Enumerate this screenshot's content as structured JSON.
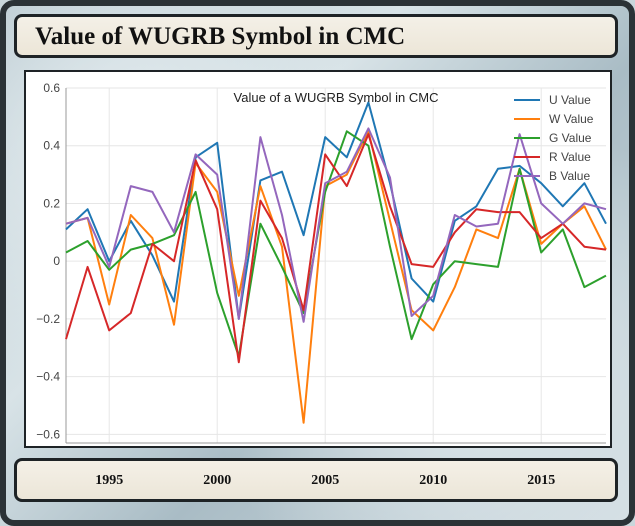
{
  "window": {
    "title": "Value of WUGRB Symbol in CMC"
  },
  "chart_data": {
    "type": "line",
    "title": "Value of a WUGRB Symbol in CMC",
    "xlabel": "",
    "ylabel": "",
    "x": [
      1993,
      1994,
      1995,
      1996,
      1997,
      1998,
      1999,
      2000,
      2001,
      2002,
      2003,
      2004,
      2005,
      2006,
      2007,
      2008,
      2009,
      2010,
      2011,
      2012,
      2013,
      2014,
      2015,
      2016,
      2017,
      2018
    ],
    "xlim": [
      1993,
      2018
    ],
    "ylim": [
      -0.63,
      0.6
    ],
    "y_ticks": [
      0.6,
      0.4,
      0.2,
      0,
      -0.2,
      -0.4,
      -0.6
    ],
    "y_tick_labels": [
      "0.6",
      "0.4",
      "0.2",
      "0",
      "−0.2",
      "−0.4",
      "−0.6"
    ],
    "x_ticks": [
      1995,
      2000,
      2005,
      2010,
      2015
    ],
    "x_tick_labels": [
      "1995",
      "2000",
      "2005",
      "2010",
      "2015"
    ],
    "grid": true,
    "legend_position": "top-right",
    "series": [
      {
        "name": "U Value",
        "color": "#1f77b4",
        "values": [
          0.11,
          0.18,
          0.0,
          0.14,
          0.02,
          -0.14,
          0.36,
          0.41,
          -0.2,
          0.28,
          0.31,
          0.09,
          0.43,
          0.36,
          0.55,
          0.27,
          -0.06,
          -0.14,
          0.14,
          0.19,
          0.32,
          0.33,
          0.27,
          0.19,
          0.27,
          0.13
        ]
      },
      {
        "name": "W Value",
        "color": "#ff7f0e",
        "values": [
          0.13,
          0.15,
          -0.15,
          0.16,
          0.08,
          -0.22,
          0.34,
          0.24,
          -0.12,
          0.26,
          0.05,
          -0.56,
          0.26,
          0.3,
          0.45,
          0.14,
          -0.17,
          -0.24,
          -0.09,
          0.11,
          0.08,
          0.32,
          0.06,
          0.13,
          0.19,
          0.04
        ]
      },
      {
        "name": "G Value",
        "color": "#2ca02c",
        "values": [
          0.03,
          0.07,
          -0.03,
          0.04,
          0.06,
          0.09,
          0.24,
          -0.11,
          -0.33,
          0.13,
          -0.02,
          -0.18,
          0.24,
          0.45,
          0.4,
          0.05,
          -0.27,
          -0.08,
          0.0,
          -0.01,
          -0.02,
          0.32,
          0.03,
          0.11,
          -0.09,
          -0.05
        ]
      },
      {
        "name": "R Value",
        "color": "#d62728",
        "values": [
          -0.27,
          -0.02,
          -0.24,
          -0.18,
          0.06,
          0.0,
          0.35,
          0.18,
          -0.35,
          0.21,
          0.08,
          -0.17,
          0.37,
          0.26,
          0.44,
          0.19,
          -0.01,
          -0.02,
          0.1,
          0.18,
          0.17,
          0.17,
          0.08,
          0.13,
          0.05,
          0.04
        ]
      },
      {
        "name": "B Value",
        "color": "#9467bd",
        "values": [
          0.13,
          0.15,
          -0.02,
          0.26,
          0.24,
          0.1,
          0.37,
          0.3,
          -0.2,
          0.43,
          0.16,
          -0.21,
          0.27,
          0.31,
          0.46,
          0.29,
          -0.19,
          -0.12,
          0.16,
          0.12,
          0.13,
          0.44,
          0.2,
          0.13,
          0.2,
          0.18
        ]
      }
    ]
  }
}
